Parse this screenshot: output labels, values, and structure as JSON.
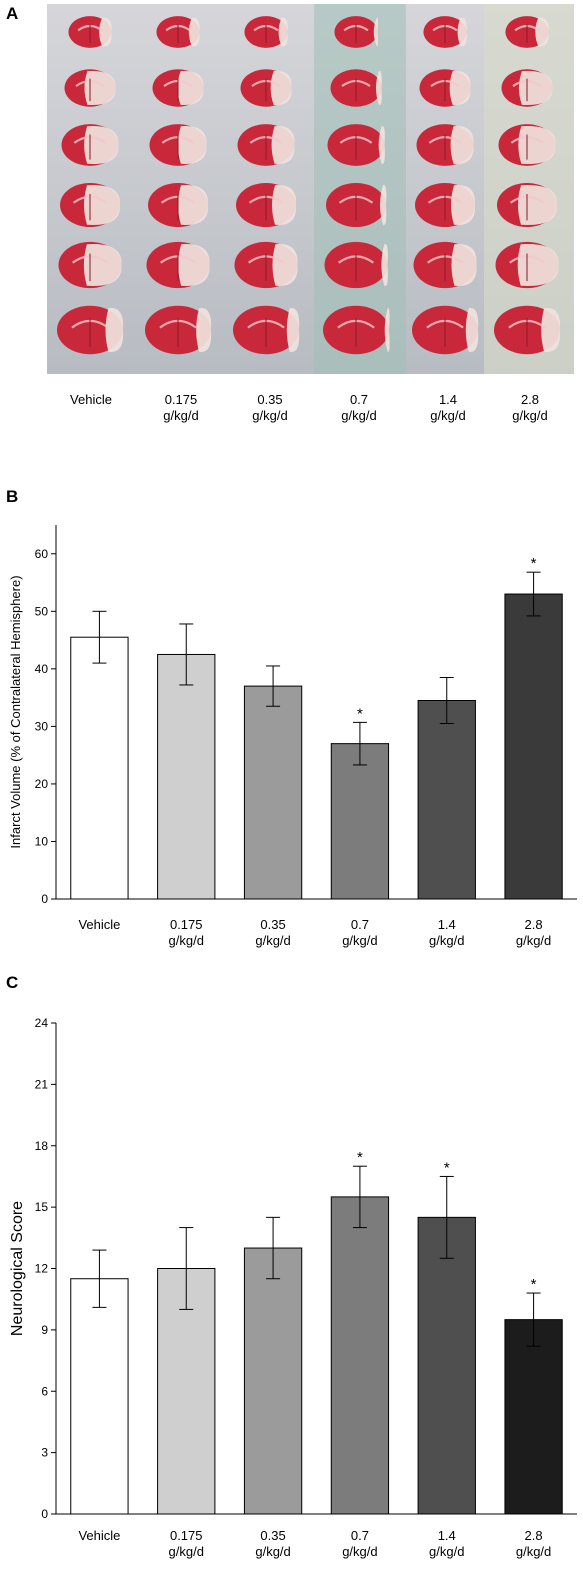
{
  "panels": {
    "a": {
      "letter": "A"
    },
    "b": {
      "letter": "B"
    },
    "c": {
      "letter": "C"
    }
  },
  "photo": {
    "groups": [
      {
        "line1": "Vehicle",
        "line2": ""
      },
      {
        "line1": "0.175",
        "line2": "g/kg/d"
      },
      {
        "line1": "0.35",
        "line2": "g/kg/d"
      },
      {
        "line1": "0.7",
        "line2": "g/kg/d"
      },
      {
        "line1": "1.4",
        "line2": "g/kg/d"
      },
      {
        "line1": "2.8",
        "line2": "g/kg/d"
      }
    ],
    "rows": 6,
    "colors": {
      "tissue": "#c8283a",
      "infarct": "#efe3de",
      "background": "#c4c7cc"
    }
  },
  "chart_data": [
    {
      "type": "bar",
      "categories": [
        {
          "line1": "Vehicle",
          "line2": ""
        },
        {
          "line1": "0.175",
          "line2": "g/kg/d"
        },
        {
          "line1": "0.35",
          "line2": "g/kg/d"
        },
        {
          "line1": "0.7",
          "line2": "g/kg/d"
        },
        {
          "line1": "1.4",
          "line2": "g/kg/d"
        },
        {
          "line1": "2.8",
          "line2": "g/kg/d"
        }
      ],
      "values": [
        45.5,
        42.5,
        37,
        27,
        34.5,
        53
      ],
      "errors": [
        4.5,
        5.3,
        3.5,
        3.7,
        4,
        3.8
      ],
      "significant": [
        false,
        false,
        false,
        true,
        false,
        true
      ],
      "significance_marker": "*",
      "bar_colors": [
        "#ffffff",
        "#cfcfcf",
        "#9b9b9b",
        "#7c7c7c",
        "#4f4f4f",
        "#3a3a3a"
      ],
      "ylabel": "Infarct Volume (% of Contralateral Hemisphere)",
      "ylim": [
        0,
        65
      ],
      "yticks": [
        0,
        10,
        20,
        30,
        40,
        50,
        60
      ],
      "grid": false
    },
    {
      "type": "bar",
      "categories": [
        {
          "line1": "Vehicle",
          "line2": ""
        },
        {
          "line1": "0.175",
          "line2": "g/kg/d"
        },
        {
          "line1": "0.35",
          "line2": "g/kg/d"
        },
        {
          "line1": "0.7",
          "line2": "g/kg/d"
        },
        {
          "line1": "1.4",
          "line2": "g/kg/d"
        },
        {
          "line1": "2.8",
          "line2": "g/kg/d"
        }
      ],
      "values": [
        11.5,
        12,
        13,
        15.5,
        14.5,
        9.5
      ],
      "errors": [
        1.4,
        2,
        1.5,
        1.5,
        2,
        1.3
      ],
      "significant": [
        false,
        false,
        false,
        true,
        true,
        true
      ],
      "significance_marker": "*",
      "bar_colors": [
        "#ffffff",
        "#cfcfcf",
        "#9b9b9b",
        "#7c7c7c",
        "#4f4f4f",
        "#1c1c1c"
      ],
      "ylabel": "Neurological Score",
      "ylim": [
        0,
        24
      ],
      "yticks": [
        0,
        3,
        6,
        9,
        12,
        15,
        18,
        21,
        24
      ],
      "grid": false
    }
  ]
}
